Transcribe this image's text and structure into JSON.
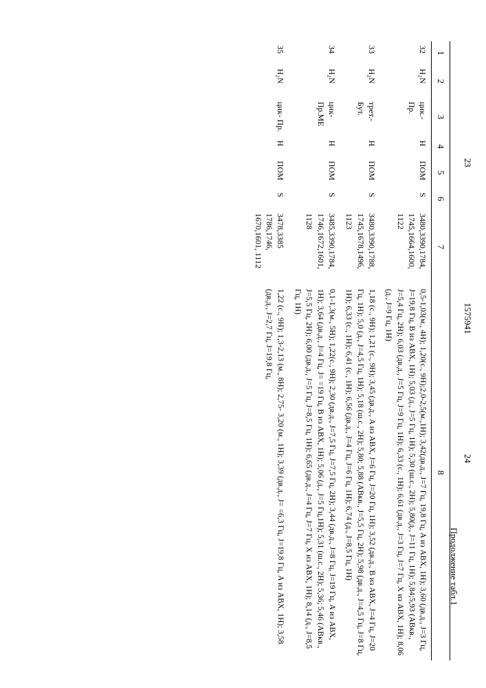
{
  "header": {
    "page_left": "23",
    "doc_number": "1575941",
    "page_right": "24",
    "caption": "Продолжение табл.1"
  },
  "columns": [
    "1",
    "2",
    "3",
    "4",
    "5",
    "6",
    "7",
    "8"
  ],
  "rows": [
    {
      "n": "32",
      "c2": "H₂N",
      "c3": "цик.- Пр.",
      "c4": "H",
      "c5": "ПОМ",
      "c6": "S",
      "c7": "3480,3390,1784, 1745,1664,1600, 1122",
      "c8": "0,5-1,03(м., 4H); 1,20(с., 9H);2,0-2,5(м.,1H); 3,42(дв.д., J=7 Гц, 19,8 Гц, A из ABX, 1H); 3,60 (дв.д., J=3 Гц, J=19,8 Гц, B из ABX, 1H); 5,03 (д., J=5 Гц, 1H); 5,30 (ш.с., 2H); 5,80(д., J=11 Гц, 1H); 5,84;5,93 (ABкв., J=5,4 Гц, 2H); 6,03 (дв.д., J=5 Гц, J=9 Гц, 1H); 6,33 (с., 1H); 6,61 (дв.д., J=3 Гц, J=7 Гц, X из ABX, 1H); 8,06 (д., J=9 Гц, 1H)"
    },
    {
      "n": "33",
      "c2": "H₂N",
      "c3": "трет.- Бут.",
      "c4": "H",
      "c5": "ПОМ",
      "c6": "S",
      "c7": "3480,3390,1788, 1745,1678,1496, 1123",
      "c8": "1,18 (с., 9H); 1,21 (с., 9H); 3,45 (дв.д., A из ABX, J=6 Гц, J=20 Гц, 1H); 3,52 (дв.д., B из ABX, J=4 Гц, J=20 Гц, 1H); 5,0 (д., J=4,5 Гц, 1H); 5,18 (ш.с., 2H); 5,80; 5,88 (ABкв., J=5,5 Гц, 2H); 5,98 (дв.д., J=4,5 Гц, J=8 Гц, 1H); 6,33 (с., 1H); 6,41 (с., 1H); 6,56 (дв.д., J=4 Гц, J=6 Гц, 1H); 6,74 (д., J=8,5 Гц, 1H)"
    },
    {
      "n": "34",
      "c2": "H₂N",
      "c3": "цик- Пр.ME",
      "c4": "H",
      "c5": "ПОМ",
      "c6": "S",
      "c7": "3485,3390,1784, 1746,1672,1601, 1128",
      "c8": "0,1-1,3(м., 5H); 1,22(с., 9H); 2,30 (дв.д., J=7,5 Гц, J=7,5 Гц, 2H); 3,44 (дв.д., J=8 Гц, J=19 Гц, A из ABX, 1H); 3,64 (дв.д., J=4 Гц, J= =19 Гц, B из ABX, 1H); 5,06 (д., J=5 Гц,1H); 5,31 (ш.с., 2H); 5,36; 5,46 (ABкв., J=5,5 Гц, 2H); 6,00 (дв.д., J=5 Гц, J=8,5 Гц, 1H); 6,65 (дв.д., J=4 Гц, J=7 Гц, X из ABX, 1H); 8,14 (д., J=8,5 Гц, 1H)"
    },
    {
      "n": "35",
      "c2": "H₂N",
      "c3": "цик- Пр.",
      "c4": "H",
      "c5": "ПОМ",
      "c6": "S",
      "c7": "3478,3385 1786,1746, 1670,1601, 1112",
      "c8": "1,22 (с., 9H); 1,3-2,13 (м., 8H); 2,75- 3,20 (м., 1H); 3,39 (дв.д., J= =6,3 Гц, J=19,8 Гц, A из ABX, 1H); 3,58 (дв.д., J=2,7 Гц, J=19,8 Гц,"
    }
  ]
}
